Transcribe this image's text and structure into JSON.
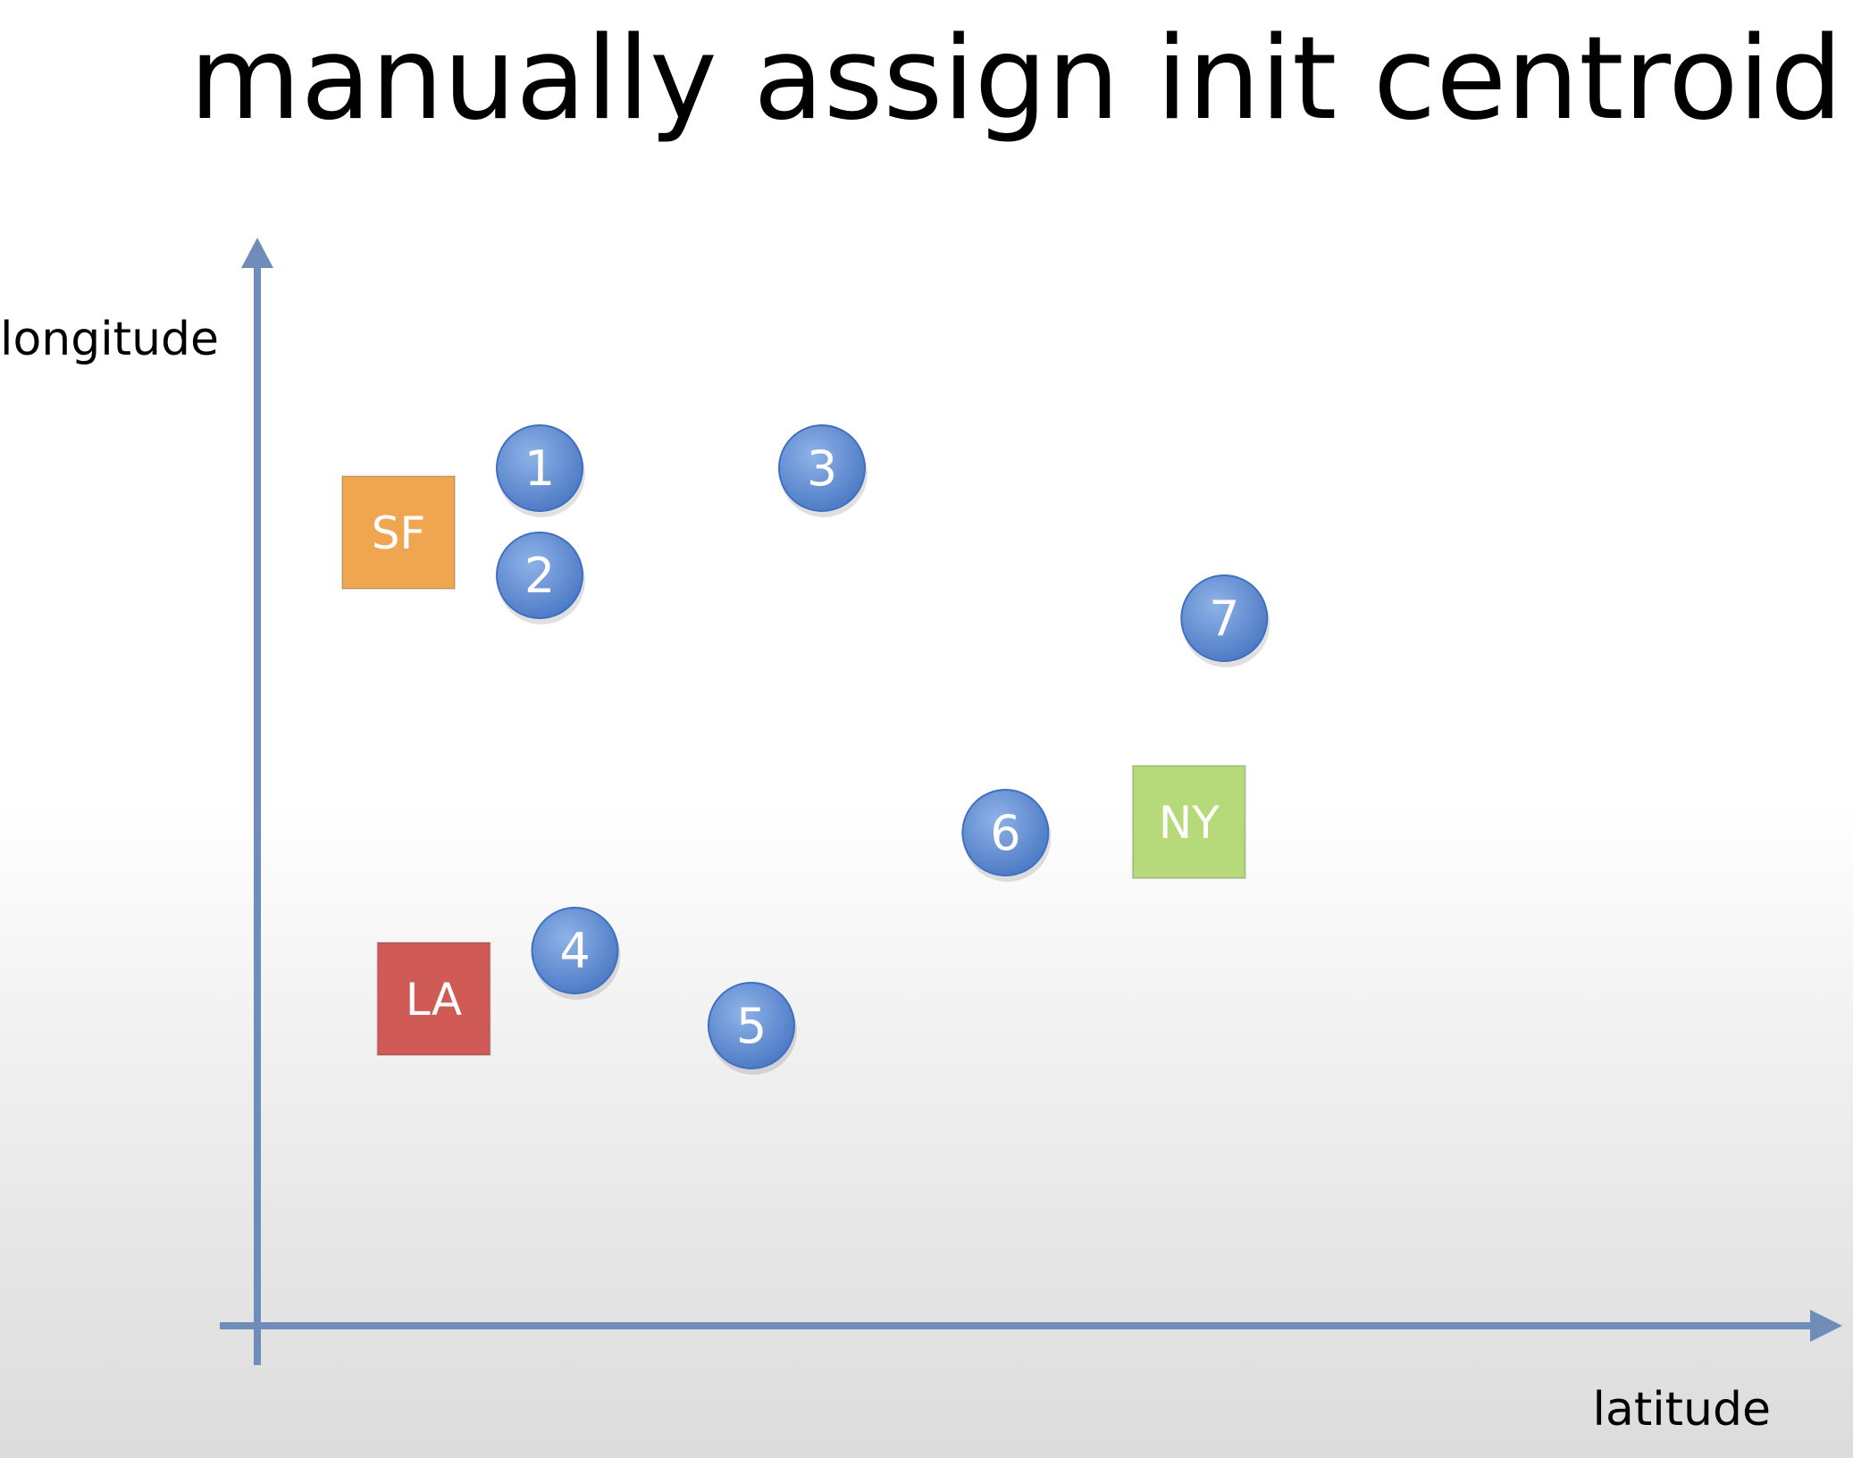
{
  "title": "manually assign init centroid",
  "axes": {
    "x_label": "latitude",
    "y_label": "longitude"
  },
  "colors": {
    "axis": "#6f8db8",
    "point": "#5b88cf",
    "centroid_SF": "#f0a551",
    "centroid_NY": "#b6d97a",
    "centroid_LA": "#d05a55"
  },
  "points": [
    {
      "label": "1",
      "x": 2,
      "y": 8
    },
    {
      "label": "2",
      "x": 2,
      "y": 7
    },
    {
      "label": "3",
      "x": 4,
      "y": 8
    },
    {
      "label": "4",
      "x": 2.25,
      "y": 3.5
    },
    {
      "label": "5",
      "x": 3.5,
      "y": 2.8
    },
    {
      "label": "6",
      "x": 5.3,
      "y": 4.6
    },
    {
      "label": "7",
      "x": 6.85,
      "y": 6.6
    }
  ],
  "centroids": [
    {
      "label": "SF",
      "x": 1,
      "y": 7.4,
      "color": "#f0a551"
    },
    {
      "label": "NY",
      "x": 6.6,
      "y": 4.7,
      "color": "#b6d97a"
    },
    {
      "label": "LA",
      "x": 1.25,
      "y": 3.05,
      "color": "#d05a55"
    }
  ]
}
